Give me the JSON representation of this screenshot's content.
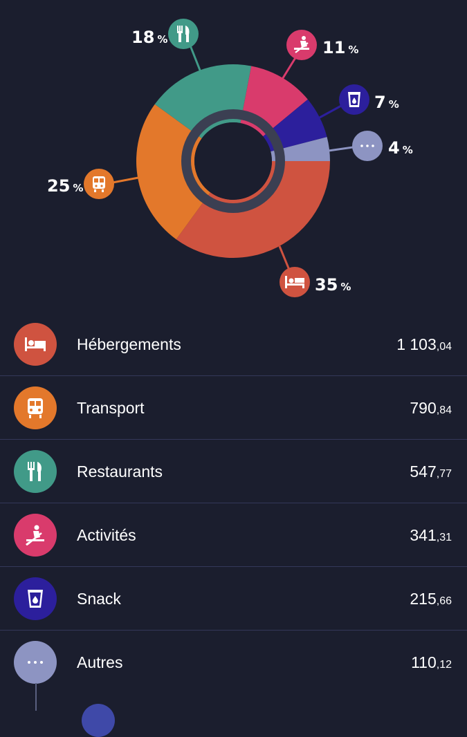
{
  "chart_data": {
    "type": "pie",
    "categories": [
      "Hébergements",
      "Transport",
      "Restaurants",
      "Activités",
      "Snack",
      "Autres"
    ],
    "values": [
      35,
      25,
      18,
      11,
      7,
      4
    ],
    "unit": "%"
  },
  "chart_labels": [
    {
      "value": "35",
      "unit": "%"
    },
    {
      "value": "25",
      "unit": "%"
    },
    {
      "value": "18",
      "unit": "%"
    },
    {
      "value": "11",
      "unit": "%"
    },
    {
      "value": "7",
      "unit": "%"
    },
    {
      "value": "4",
      "unit": "%"
    }
  ],
  "colors": {
    "hebergements": "#cf5340",
    "transport": "#e3782b",
    "restaurants": "#419a88",
    "activites": "#d93b6c",
    "snack": "#2c1f9c",
    "autres": "#8d94c2",
    "background": "#1b1e2e"
  },
  "categories": [
    {
      "name": "Hébergements",
      "amount_int": "1 103",
      "amount_dec": ",04",
      "icon": "bed-icon"
    },
    {
      "name": "Transport",
      "amount_int": "790",
      "amount_dec": ",84",
      "icon": "train-icon"
    },
    {
      "name": "Restaurants",
      "amount_int": "547",
      "amount_dec": ",77",
      "icon": "cutlery-icon"
    },
    {
      "name": "Activités",
      "amount_int": "341",
      "amount_dec": ",31",
      "icon": "activity-icon"
    },
    {
      "name": "Snack",
      "amount_int": "215",
      "amount_dec": ",66",
      "icon": "drink-icon"
    },
    {
      "name": "Autres",
      "amount_int": "110",
      "amount_dec": ",12",
      "icon": "more-icon"
    }
  ]
}
